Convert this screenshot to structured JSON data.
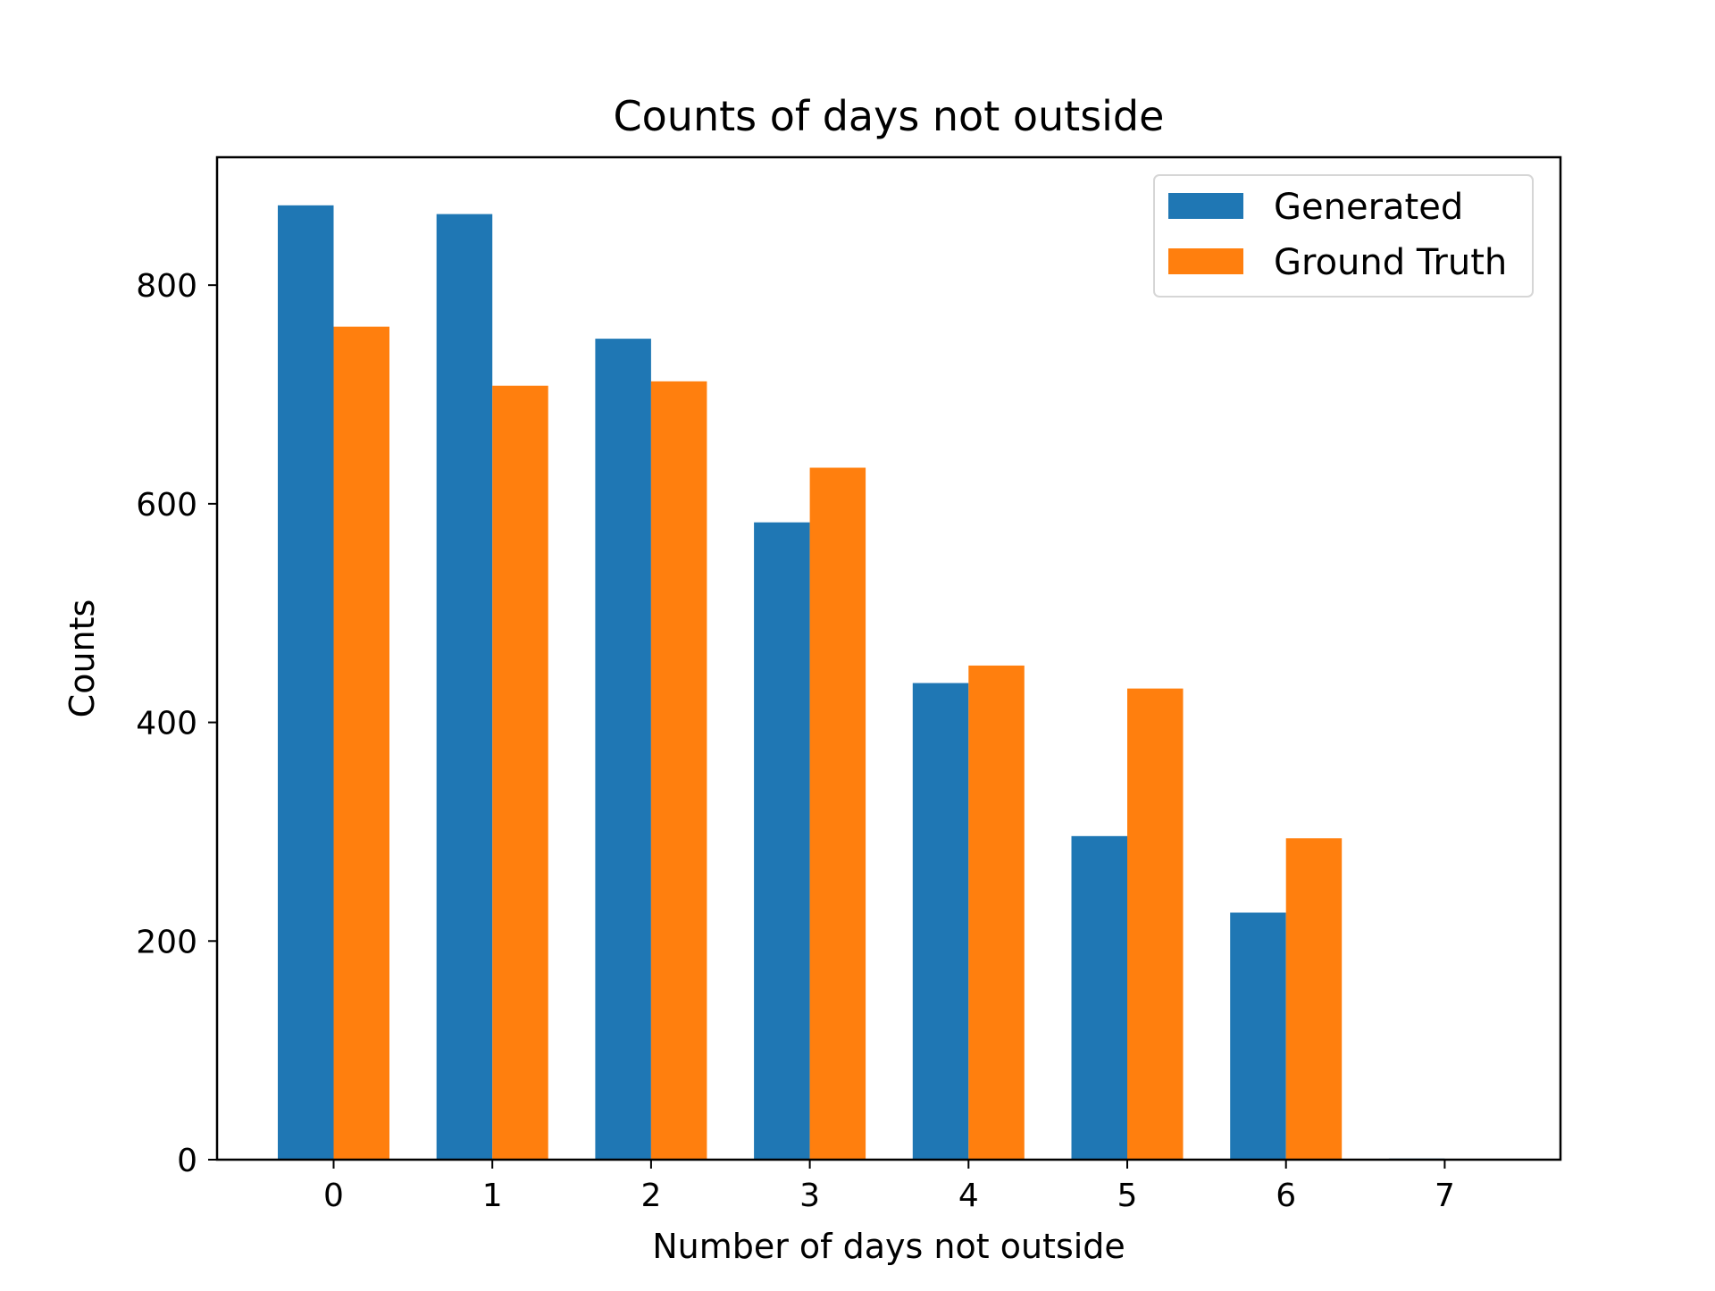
{
  "chart_data": {
    "type": "bar",
    "title": "Counts of days not outside",
    "xlabel": "Number of days not outside",
    "ylabel": "Counts",
    "categories": [
      "0",
      "1",
      "2",
      "3",
      "4",
      "5",
      "6",
      "7"
    ],
    "series": [
      {
        "name": "Generated",
        "color": "#1f77b4",
        "values": [
          873,
          865,
          751,
          583,
          436,
          296,
          226,
          1
        ]
      },
      {
        "name": "Ground Truth",
        "color": "#ff7f0e",
        "values": [
          762,
          708,
          712,
          633,
          452,
          431,
          294,
          0
        ]
      }
    ],
    "ylim": [
      0,
      917
    ],
    "yticks": [
      0,
      200,
      400,
      600,
      800
    ],
    "grid": false,
    "legend_position": "top-right"
  }
}
